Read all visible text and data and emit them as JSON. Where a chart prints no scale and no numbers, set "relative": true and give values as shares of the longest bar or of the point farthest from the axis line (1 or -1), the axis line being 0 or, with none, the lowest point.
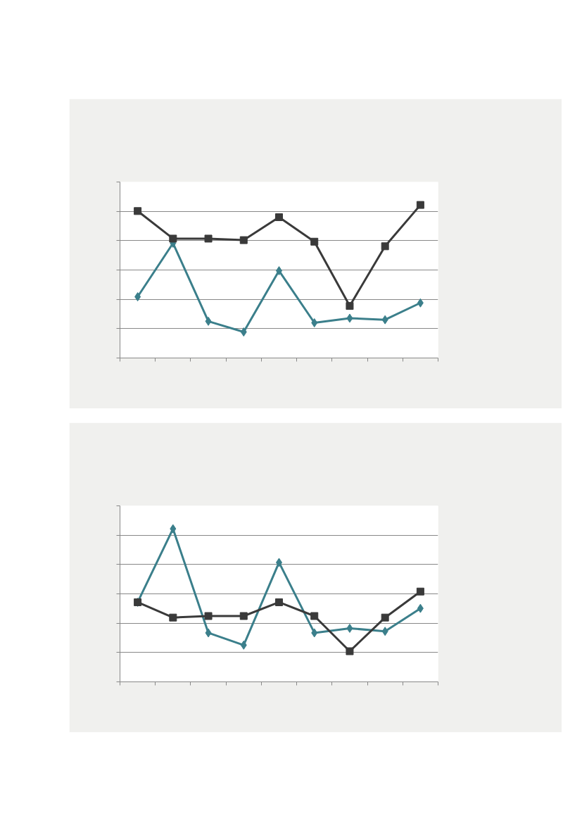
{
  "chart_data": [
    {
      "type": "line",
      "relative": true,
      "categories": [
        null,
        null,
        null,
        null,
        null,
        null,
        null,
        null,
        null
      ],
      "grid": "y",
      "line_style": "solid",
      "series": [
        {
          "color": "#3b7f8b",
          "marker": "diamond",
          "values": [
            0.4,
            0.75,
            0.24,
            0.17,
            0.57,
            0.23,
            0.26,
            0.25,
            0.36
          ]
        },
        {
          "color": "#3a3a3a",
          "marker": "square",
          "values": [
            0.96,
            0.78,
            0.78,
            0.77,
            0.92,
            0.76,
            0.34,
            0.73,
            1.0
          ]
        }
      ]
    },
    {
      "type": "line",
      "relative": true,
      "categories": [
        null,
        null,
        null,
        null,
        null,
        null,
        null,
        null,
        null
      ],
      "grid": "y",
      "line_style": "solid",
      "series": [
        {
          "color": "#3b7f8b",
          "marker": "diamond",
          "values": [
            0.52,
            1.0,
            0.32,
            0.24,
            0.78,
            0.32,
            0.35,
            0.33,
            0.48
          ]
        },
        {
          "color": "#3a3a3a",
          "marker": "square",
          "values": [
            0.52,
            0.42,
            0.43,
            0.43,
            0.52,
            0.43,
            0.2,
            0.42,
            0.59
          ]
        }
      ]
    }
  ]
}
